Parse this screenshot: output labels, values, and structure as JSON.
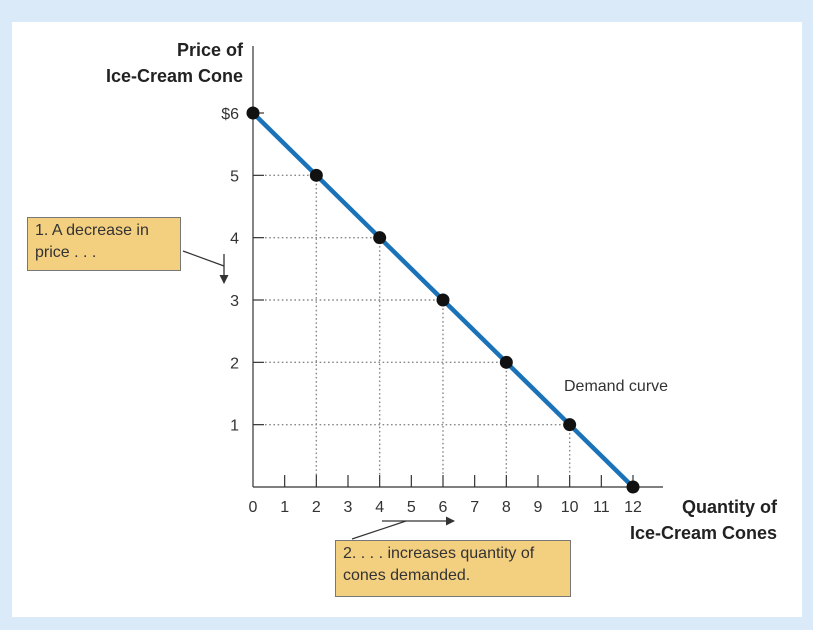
{
  "chart_data": {
    "type": "line",
    "ylabel": [
      "Price of",
      "Ice-Cream Cone"
    ],
    "xlabel": [
      "Quantity of",
      "Ice-Cream Cones"
    ],
    "x_ticks": [
      "0",
      "1",
      "2",
      "3",
      "4",
      "5",
      "6",
      "7",
      "8",
      "9",
      "10",
      "11",
      "12"
    ],
    "y_ticks": [
      {
        "value": 6,
        "label": "$6"
      },
      {
        "value": 5,
        "label": "5"
      },
      {
        "value": 4,
        "label": "4"
      },
      {
        "value": 3,
        "label": "3"
      },
      {
        "value": 2,
        "label": "2"
      },
      {
        "value": 1,
        "label": "1"
      }
    ],
    "xlim": [
      0,
      12
    ],
    "ylim": [
      0,
      6
    ],
    "series": [
      {
        "name": "Demand curve",
        "color": "#1a72b8",
        "points": [
          [
            0,
            6
          ],
          [
            2,
            5
          ],
          [
            4,
            4
          ],
          [
            6,
            3
          ],
          [
            8,
            2
          ],
          [
            10,
            1
          ],
          [
            12,
            0
          ]
        ]
      }
    ],
    "curve_label": "Demand curve",
    "dotted_guides": true
  },
  "annotations": {
    "price_note": [
      "1. A decrease in",
      "price . . ."
    ],
    "quantity_note": [
      "2. . . . increases quantity of",
      "cones demanded."
    ]
  },
  "colors": {
    "background": "#dbeaf8",
    "panel": "#ffffff",
    "note_fill": "#f3cf80",
    "curve": "#1a72b8"
  }
}
